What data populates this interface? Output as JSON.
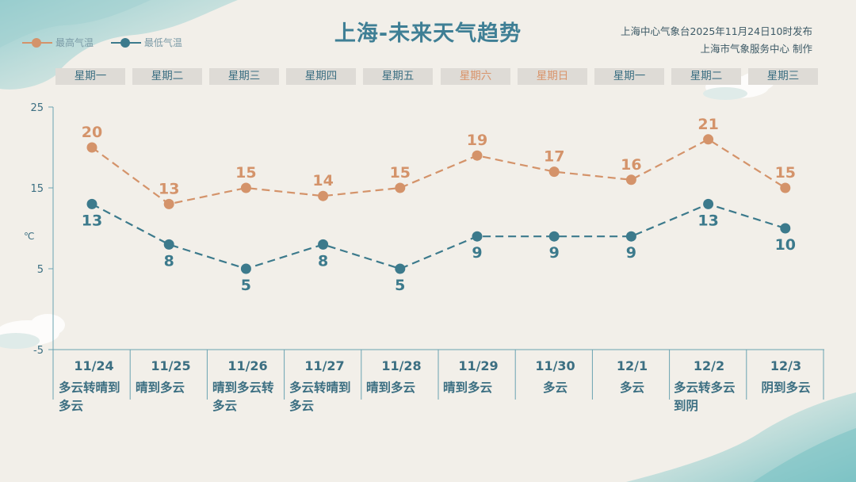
{
  "header": {
    "title": "上海-未来天气趋势",
    "source_line1": "上海中心气象台2025年11月24日10时发布",
    "source_line2": "上海市气象服务中心  制作"
  },
  "legend": {
    "high_label": "最高气温",
    "low_label": "最低气温"
  },
  "colors": {
    "high": "#d4936a",
    "low": "#3c7a8c",
    "accent": "#3f7f95",
    "weekend": "#d9946b"
  },
  "weekdays": [
    "星期一",
    "星期二",
    "星期三",
    "星期四",
    "星期五",
    "星期六",
    "星期日",
    "星期一",
    "星期二",
    "星期三"
  ],
  "days": [
    {
      "date": "11/24",
      "weather": "多云转晴到多云"
    },
    {
      "date": "11/25",
      "weather": "晴到多云"
    },
    {
      "date": "11/26",
      "weather": "晴到多云转多云"
    },
    {
      "date": "11/27",
      "weather": "多云转晴到多云"
    },
    {
      "date": "11/28",
      "weather": "晴到多云"
    },
    {
      "date": "11/29",
      "weather": "晴到多云"
    },
    {
      "date": "11/30",
      "weather": "多云"
    },
    {
      "date": "12/1",
      "weather": "多云"
    },
    {
      "date": "12/2",
      "weather": "多云转多云到阴"
    },
    {
      "date": "12/3",
      "weather": "阴到多云"
    }
  ],
  "chart_data": {
    "type": "line",
    "categories": [
      "11/24",
      "11/25",
      "11/26",
      "11/27",
      "11/28",
      "11/29",
      "11/30",
      "12/1",
      "12/2",
      "12/3"
    ],
    "series": [
      {
        "name": "最高气温",
        "values": [
          20,
          13,
          15,
          14,
          15,
          19,
          17,
          16,
          21,
          15
        ]
      },
      {
        "name": "最低气温",
        "values": [
          13,
          8,
          5,
          8,
          5,
          9,
          9,
          9,
          13,
          10
        ]
      }
    ],
    "ylabel": "℃",
    "ylim": [
      -5,
      25
    ],
    "yticks": [
      -5,
      5,
      15,
      25
    ],
    "grid": false,
    "legend_position": "top-left"
  }
}
